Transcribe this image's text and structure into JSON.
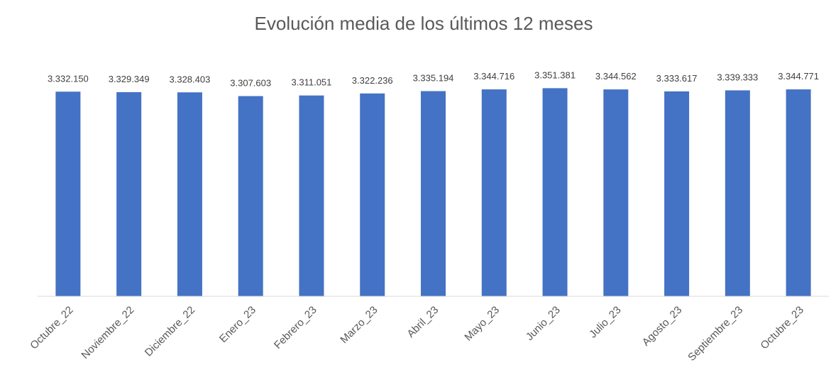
{
  "chart_data": {
    "type": "bar",
    "title": "Evolución media de los últimos 12 meses",
    "categories": [
      "Octubre_22",
      "Noviembre_22",
      "Diciembre_22",
      "Enero_23",
      "Febrero_23",
      "Marzo_23",
      "Abril_23",
      "Mayo_23",
      "Junio_23",
      "Julio_23",
      "Agosto_23",
      "Septiembre_23",
      "Octubre_23"
    ],
    "values": [
      3332150,
      3329349,
      3328403,
      3307603,
      3311051,
      3322236,
      3335194,
      3344716,
      3351381,
      3344562,
      3333617,
      3339333,
      3344771
    ],
    "value_labels": [
      "3.332.150",
      "3.329.349",
      "3.328.403",
      "3.307.603",
      "3.311.051",
      "3.322.236",
      "3.335.194",
      "3.344.716",
      "3.351.381",
      "3.344.562",
      "3.333.617",
      "3.339.333",
      "3.344.771"
    ],
    "color": "#4472c4",
    "ylim": [
      2200000,
      3400000
    ]
  }
}
